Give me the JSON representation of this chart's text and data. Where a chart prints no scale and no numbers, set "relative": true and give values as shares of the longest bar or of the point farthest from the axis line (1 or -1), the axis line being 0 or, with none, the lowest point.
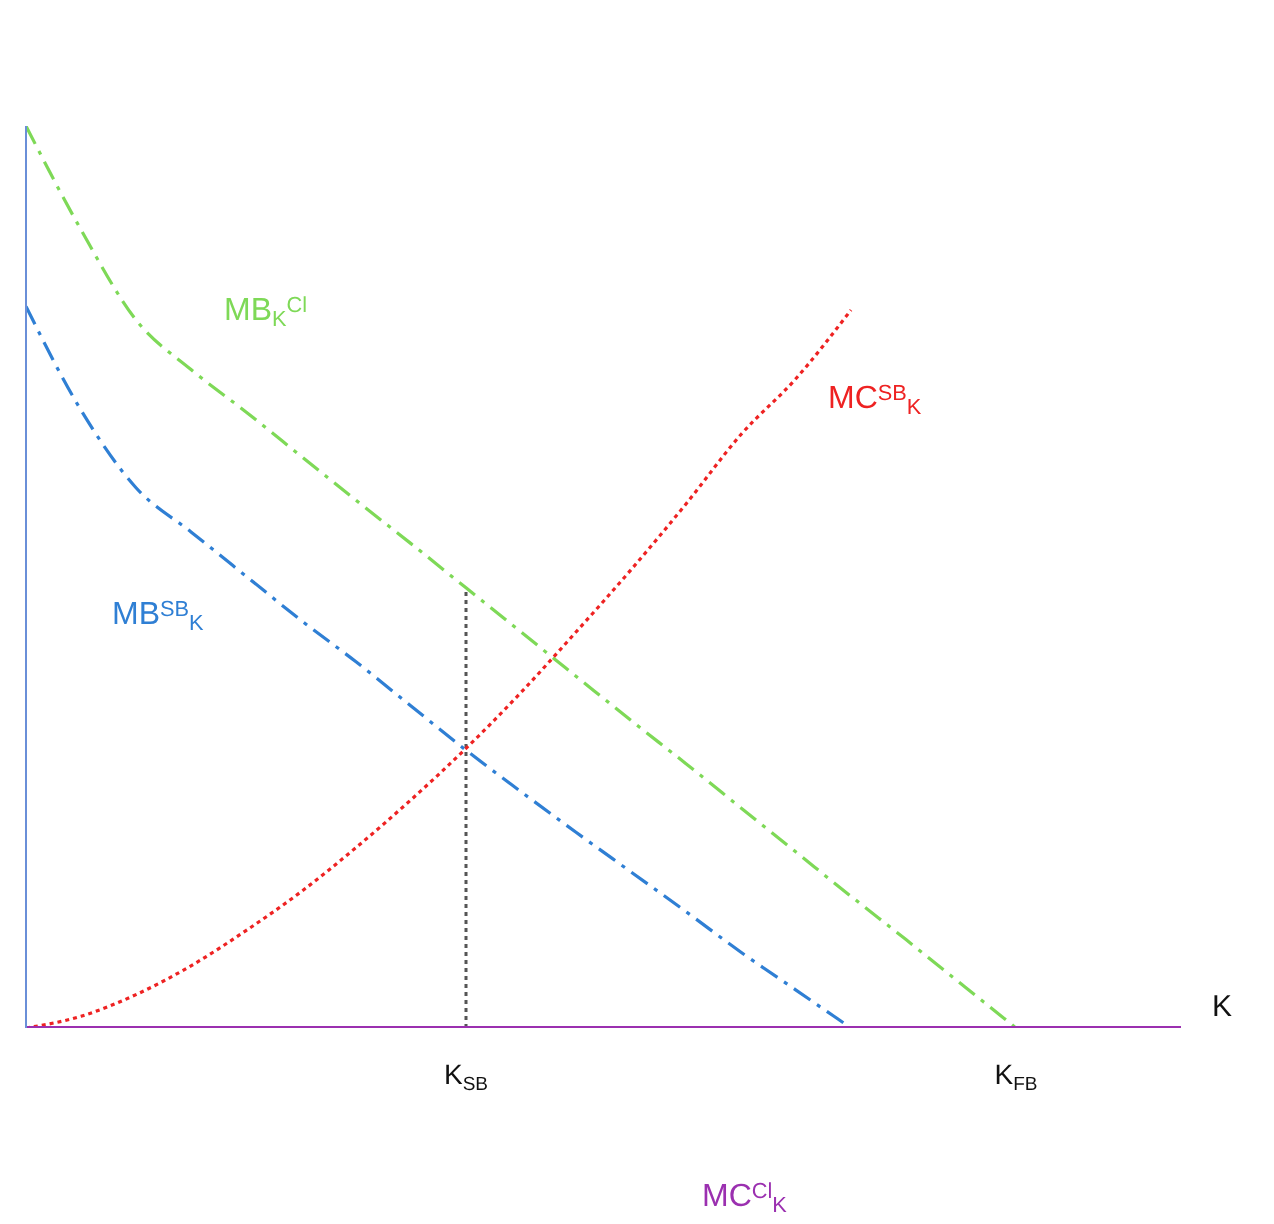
{
  "chart_data": {
    "type": "line",
    "relative": true,
    "xlabel": "K",
    "categories": [
      null,
      null,
      null,
      null,
      null,
      null,
      null,
      null,
      "K$_{SB}$",
      null,
      null,
      null,
      null,
      null,
      null,
      null,
      null,
      null,
      "K$_{FB}$",
      null,
      null,
      null,
      null
    ],
    "series": [
      {
        "name": "MB$_{K}$$^{Cl}$",
        "color": "#7ed957",
        "line_style": "dashed",
        "values": [
          1.0,
          0.885,
          0.785,
          0.73,
          0.683,
          0.634,
          0.585,
          0.537,
          0.488,
          0.439,
          0.39,
          0.341,
          0.293,
          0.244,
          0.195,
          0.146,
          0.098,
          0.049,
          0,
          null,
          null,
          null,
          null
        ]
      },
      {
        "name": "MB$^{SB}$$_{K}$",
        "color": "#2f7fd4",
        "line_style": "dashed",
        "values": [
          0.8,
          0.685,
          0.599,
          0.55,
          0.501,
          0.452,
          0.406,
          0.357,
          0.308,
          0.262,
          0.217,
          0.173,
          0.129,
          0.084,
          0.042,
          0,
          null,
          null,
          null,
          null,
          null,
          null,
          null
        ]
      },
      {
        "name": "MC$^{SB}$$_{K}$",
        "color": "#ee2222",
        "line_style": "dotted",
        "values": [
          0,
          0.013,
          0.037,
          0.069,
          0.108,
          0.151,
          0.2,
          0.253,
          0.31,
          0.372,
          0.439,
          0.508,
          0.581,
          0.658,
          0.72,
          0.796,
          null,
          null,
          null,
          null,
          null,
          null,
          null
        ]
      },
      {
        "name": "MC$^{Cl}$$_{K}$",
        "color": "#9b30b0",
        "line_style": "solid",
        "values": [
          0,
          0,
          0,
          0,
          0,
          0,
          0,
          0,
          0,
          0,
          0,
          0,
          0,
          0,
          0,
          0,
          0,
          0,
          0,
          0,
          0,
          0,
          null
        ]
      }
    ],
    "ref_lines": [
      {
        "axis": "x",
        "value": "K$_{SB}$",
        "color": "#555555",
        "line_style": "dotted"
      }
    ]
  }
}
